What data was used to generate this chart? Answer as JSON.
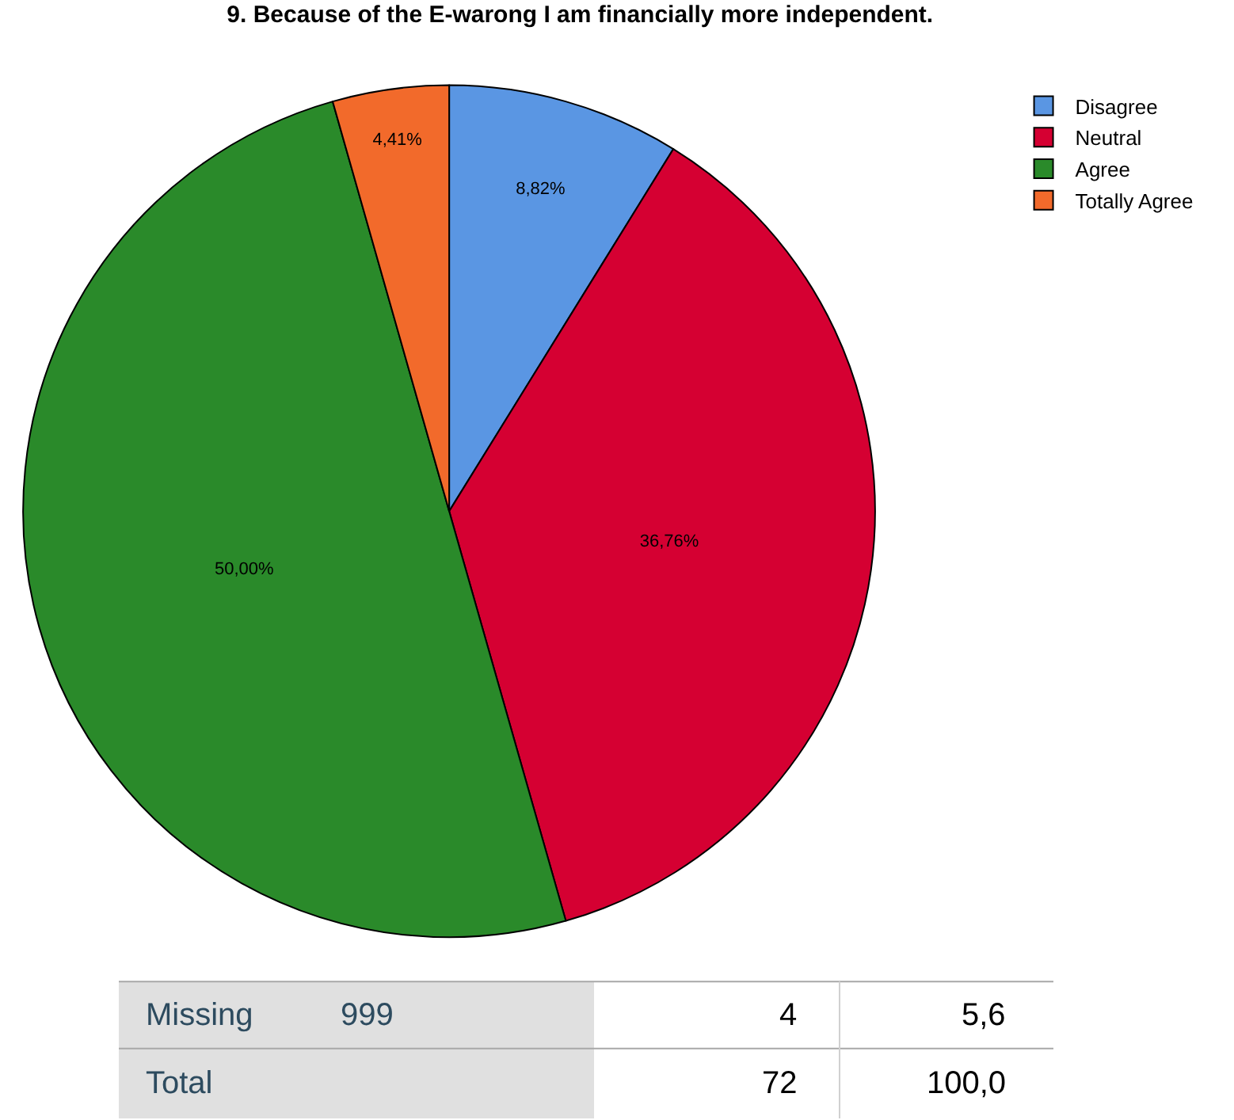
{
  "chart_data": {
    "type": "pie",
    "title": "9. Because of the E-warong I am financially more independent.",
    "categories": [
      "Disagree",
      "Neutral",
      "Agree",
      "Totally Agree"
    ],
    "values": [
      8.82,
      36.76,
      50.0,
      4.41
    ],
    "colors": [
      "#5a96e3",
      "#d50032",
      "#2a8a2a",
      "#f26a2b"
    ],
    "value_labels": [
      "8,82%",
      "36,76%",
      "50,00%",
      "4,41%"
    ],
    "legend": "top right",
    "annotations": [
      "Missing",
      "999",
      "4",
      "5,6",
      "Total",
      "72",
      "100,0"
    ]
  }
}
